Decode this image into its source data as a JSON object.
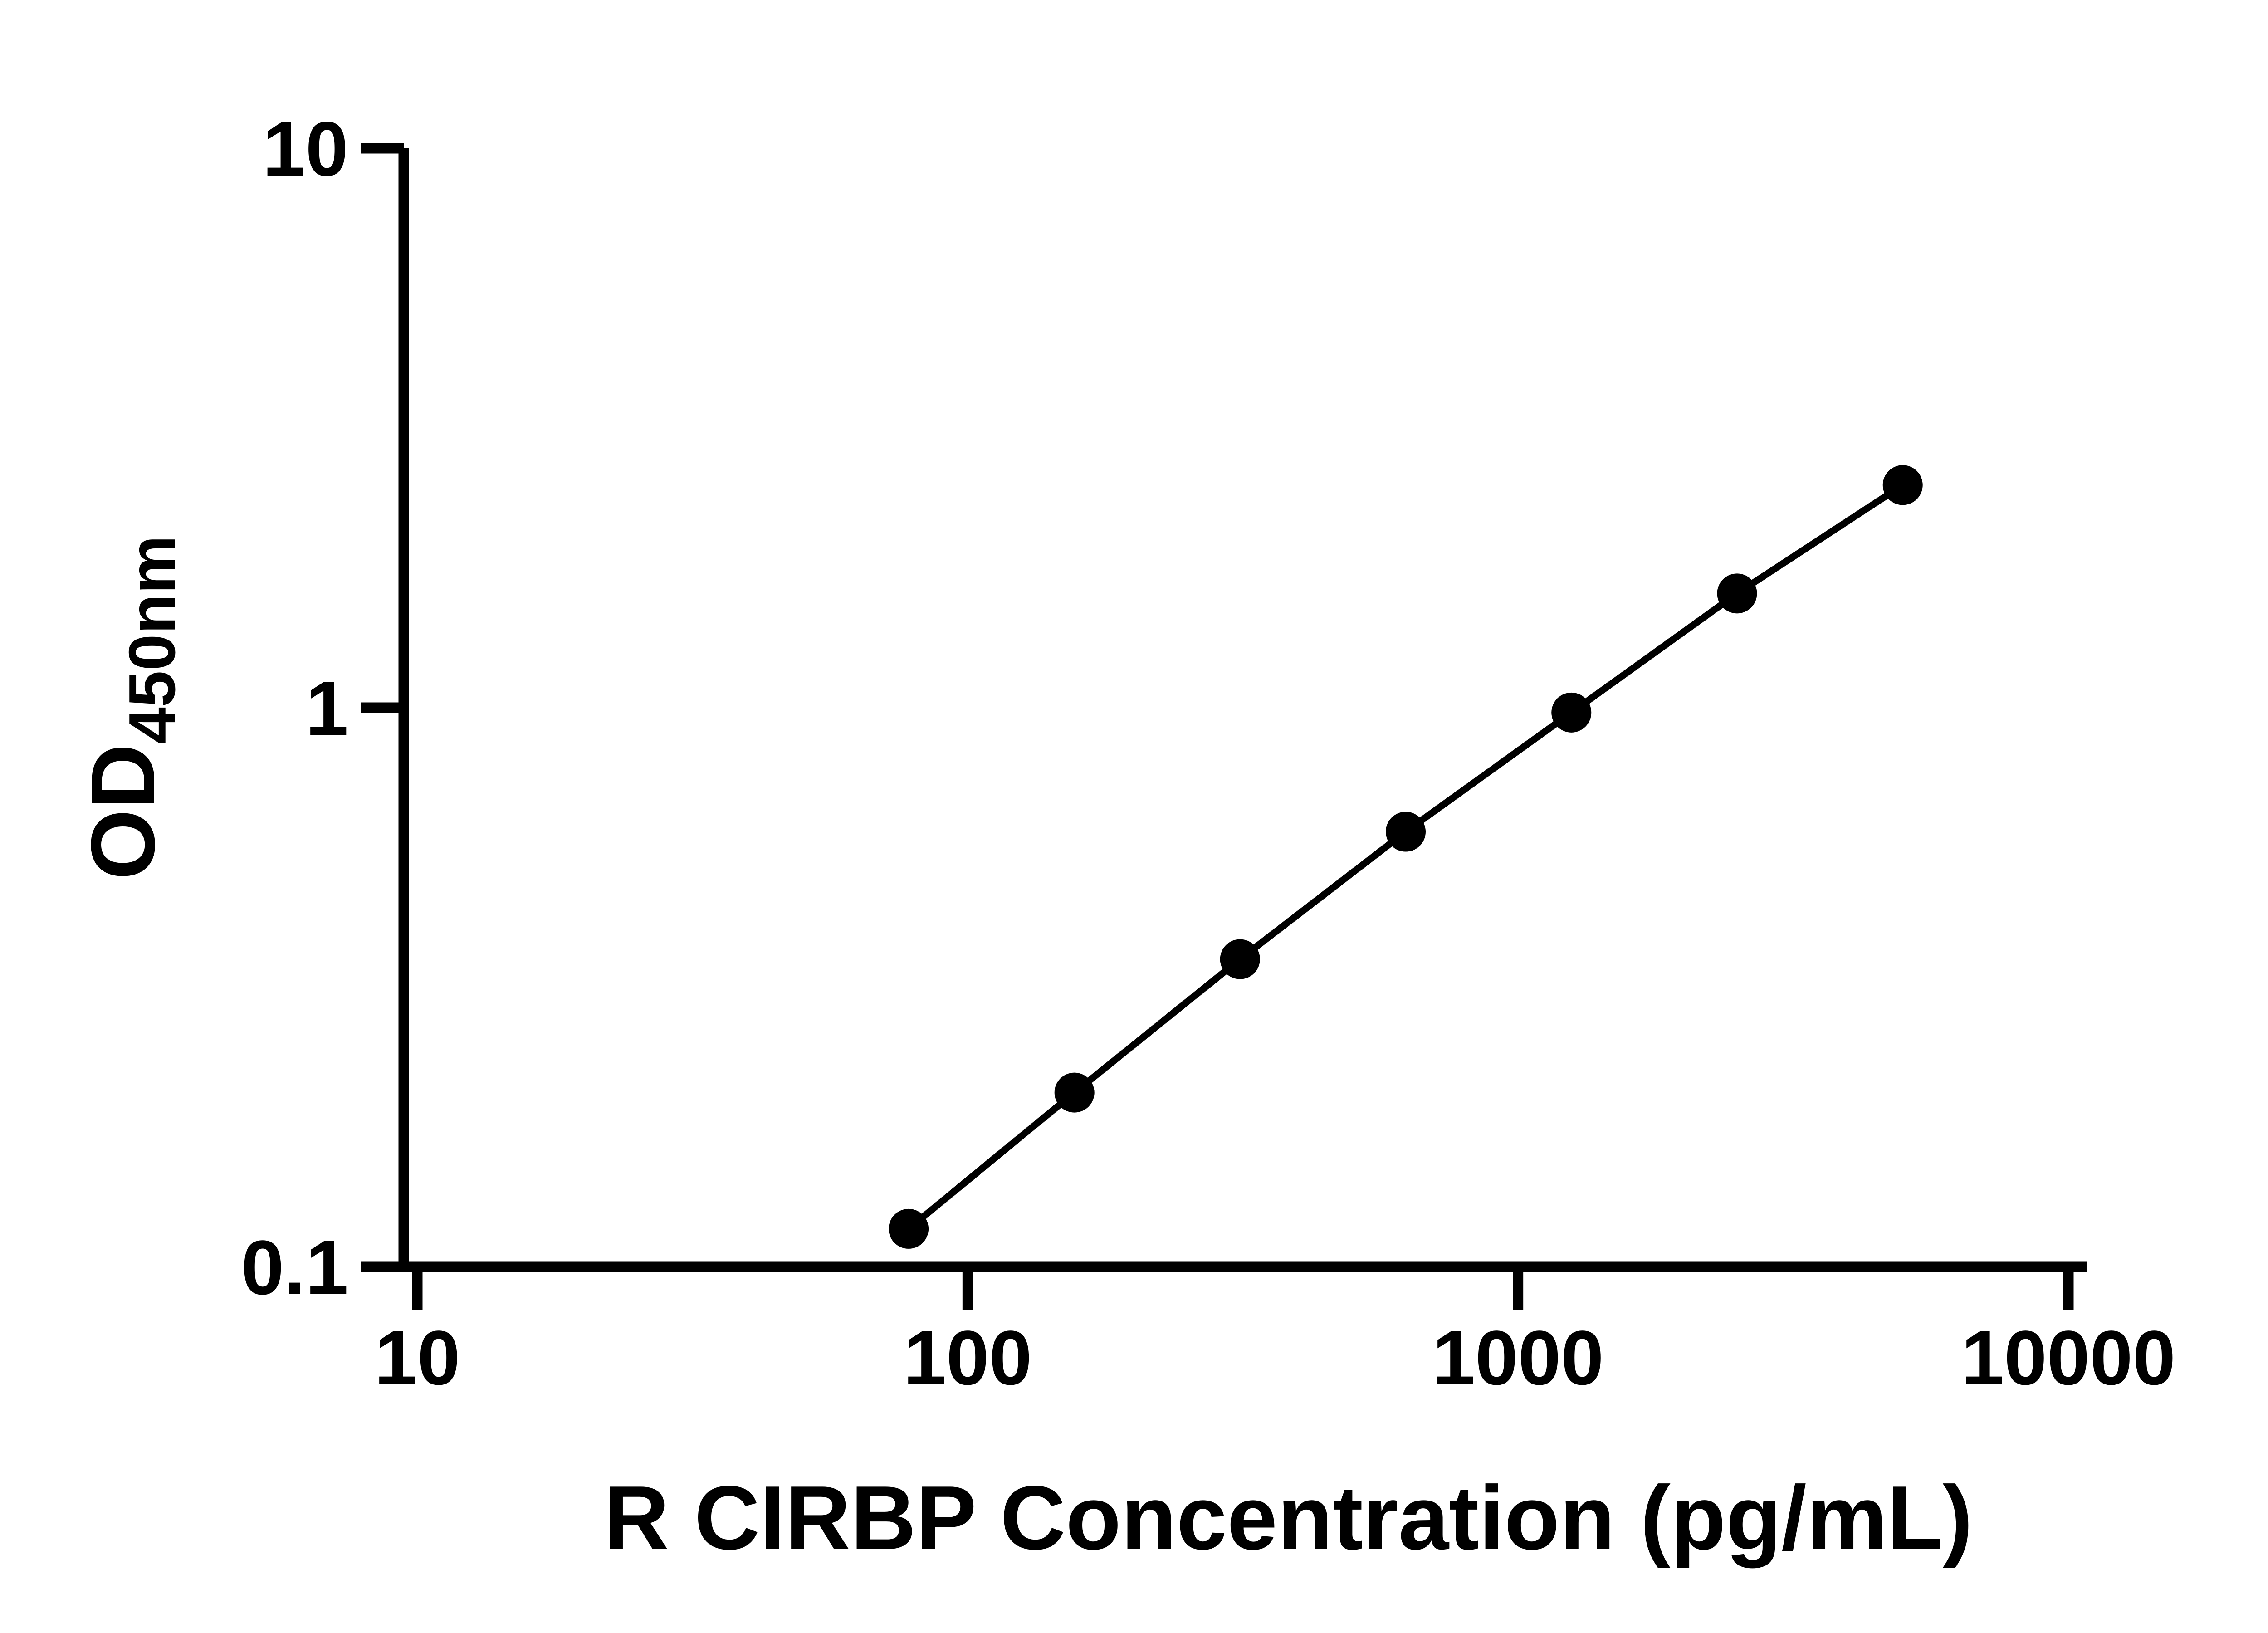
{
  "page": {
    "background_color": "#ffffff",
    "foreground_color": "#000000"
  },
  "chart_data": {
    "type": "line",
    "title": "",
    "xlabel": "R CIRBP Concentration (pg/mL)",
    "ylabel_main": "OD",
    "ylabel_sub": "450nm",
    "x_scale": "log",
    "y_scale": "log",
    "xlim": [
      10,
      10000
    ],
    "ylim": [
      0.1,
      10
    ],
    "grid": false,
    "legend": "none",
    "x_ticks": [
      10,
      100,
      1000,
      10000
    ],
    "x_tick_labels": [
      "10",
      "100",
      "1000",
      "10000"
    ],
    "y_ticks": [
      0.1,
      1,
      10
    ],
    "y_tick_labels": [
      "0.1",
      "1",
      "10"
    ],
    "marker": "filled-circle",
    "marker_color": "#000000",
    "line_color": "#000000",
    "x": [
      78.1,
      156.3,
      312.5,
      625,
      1250,
      2500,
      5000
    ],
    "y": [
      0.117,
      0.205,
      0.355,
      0.6,
      0.98,
      1.6,
      2.5
    ]
  }
}
